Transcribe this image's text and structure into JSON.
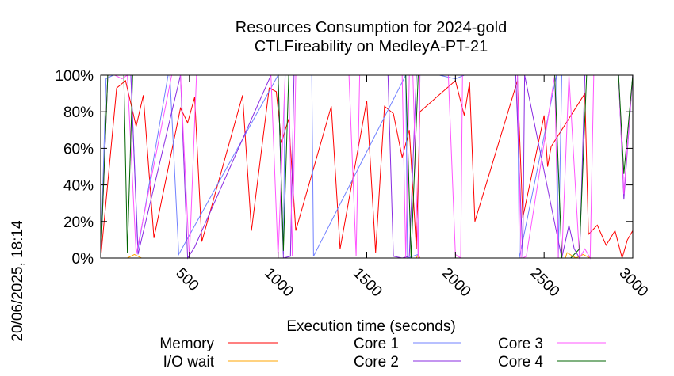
{
  "chart_data": {
    "type": "line",
    "title": [
      "Resources Consumption for 2024-gold",
      "CTLFireability on MedleyA-PT-21"
    ],
    "xlabel": "Execution time (seconds)",
    "ylabel": "",
    "side_label": "20/06/2025, 18:14",
    "xlim": [
      0,
      3000
    ],
    "ylim": [
      0,
      100
    ],
    "xticks": [
      {
        "v": 500,
        "label": "500"
      },
      {
        "v": 1000,
        "label": "1000"
      },
      {
        "v": 1500,
        "label": "1500"
      },
      {
        "v": 2000,
        "label": "2000"
      },
      {
        "v": 2500,
        "label": "2500"
      },
      {
        "v": 3000,
        "label": "3000"
      }
    ],
    "yticks": [
      {
        "v": 0,
        "label": "0%"
      },
      {
        "v": 20,
        "label": "20%"
      },
      {
        "v": 40,
        "label": "40%"
      },
      {
        "v": 60,
        "label": "60%"
      },
      {
        "v": 80,
        "label": "80%"
      },
      {
        "v": 100,
        "label": "100%"
      }
    ],
    "grid": false,
    "legend_position": "bottom",
    "series": [
      {
        "name": "Memory",
        "color": "#ff0000",
        "x": [
          0,
          90,
          140,
          200,
          240,
          300,
          450,
          490,
          530,
          570,
          800,
          850,
          950,
          990,
          1020,
          1040,
          1060,
          1100,
          1300,
          1350,
          1500,
          1550,
          1600,
          1650,
          1700,
          1740,
          1780,
          1800,
          2000,
          2050,
          2080,
          2110,
          2350,
          2380,
          2500,
          2520,
          2540,
          2730,
          2750,
          2800,
          2850,
          2900,
          2940,
          2970,
          3000
        ],
        "y": [
          0,
          93,
          97,
          72,
          89,
          11,
          82,
          74,
          88,
          9,
          89,
          15,
          93,
          91,
          63,
          70,
          76,
          15,
          83,
          5,
          86,
          3,
          83,
          79,
          55,
          70,
          5,
          80,
          97,
          78,
          96,
          20,
          97,
          22,
          78,
          50,
          61,
          90,
          13,
          18,
          7,
          15,
          0,
          10,
          15
        ]
      },
      {
        "name": "I/O wait",
        "color": "#ffa500",
        "x": [
          0,
          150,
          190,
          230,
          270,
          1780,
          1790,
          1800,
          1810,
          2620,
          2630,
          2680,
          2720,
          2760,
          3000
        ],
        "y": [
          0,
          0,
          2,
          0,
          0,
          0,
          2,
          0,
          0,
          0,
          3,
          0,
          2,
          0,
          0
        ]
      },
      {
        "name": "Core 1",
        "color": "#7080ff",
        "x": [
          0,
          30,
          70,
          130,
          170,
          210,
          380,
          390,
          440,
          1000,
          1030,
          1040,
          1190,
          1200,
          1720,
          1730,
          1790,
          1800,
          1910,
          2000,
          2050,
          2060,
          2350,
          2360,
          2570,
          2580,
          2600,
          2620,
          2660,
          2700,
          2730,
          2760,
          2850,
          2920,
          2950,
          3000
        ],
        "y": [
          0,
          98,
          100,
          100,
          100,
          5,
          100,
          100,
          2,
          100,
          2,
          100,
          100,
          1,
          100,
          0,
          2,
          100,
          100,
          98,
          100,
          100,
          100,
          0,
          100,
          0,
          100,
          100,
          100,
          100,
          100,
          100,
          100,
          100,
          35,
          100
        ]
      },
      {
        "name": "Core 2",
        "color": "#8a2be2",
        "x": [
          0,
          40,
          70,
          130,
          170,
          210,
          450,
          490,
          530,
          960,
          1000,
          1030,
          1070,
          1090,
          1100,
          1620,
          1650,
          1700,
          1740,
          1780,
          2340,
          2380,
          2390,
          2600,
          2640,
          2670,
          2700,
          2730,
          2760,
          2920,
          2950,
          3000
        ],
        "y": [
          0,
          100,
          100,
          100,
          100,
          2,
          100,
          0,
          6,
          100,
          100,
          0,
          1,
          100,
          100,
          100,
          1,
          0,
          1,
          100,
          100,
          0,
          100,
          0,
          18,
          5,
          0,
          100,
          100,
          100,
          32,
          100
        ]
      },
      {
        "name": "Core 3",
        "color": "#ff55ff",
        "x": [
          0,
          40,
          80,
          120,
          150,
          200,
          400,
          450,
          500,
          540,
          960,
          1000,
          1040,
          1060,
          1080,
          1100,
          1260,
          1300,
          1400,
          1440,
          1460,
          1500,
          1700,
          1720,
          1740,
          1760,
          1790,
          1800,
          1960,
          2000,
          2030,
          2040,
          2060,
          2350,
          2370,
          2380,
          2400,
          2560,
          2580,
          2600,
          2640,
          2700,
          2730,
          2760,
          2780,
          2920,
          2950,
          3000
        ],
        "y": [
          0,
          100,
          100,
          98,
          100,
          2,
          100,
          100,
          0,
          100,
          100,
          0,
          100,
          100,
          1,
          100,
          100,
          100,
          100,
          1,
          100,
          100,
          100,
          0,
          100,
          100,
          0,
          100,
          100,
          2,
          0,
          100,
          100,
          100,
          0,
          0,
          1,
          100,
          0,
          0,
          100,
          0,
          5,
          0,
          100,
          100,
          35,
          100
        ]
      },
      {
        "name": "Core 4",
        "color": "#006400",
        "x": [
          0,
          40,
          80,
          130,
          150,
          180,
          200,
          1000,
          1030,
          1060,
          1720,
          1750,
          1790,
          2560,
          2600,
          2650,
          2700,
          2740,
          2850,
          2920,
          2950,
          3000
        ],
        "y": [
          0,
          100,
          100,
          100,
          3,
          100,
          100,
          100,
          4,
          100,
          100,
          0,
          100,
          100,
          0,
          0,
          5,
          100,
          100,
          100,
          46,
          100
        ]
      }
    ]
  }
}
